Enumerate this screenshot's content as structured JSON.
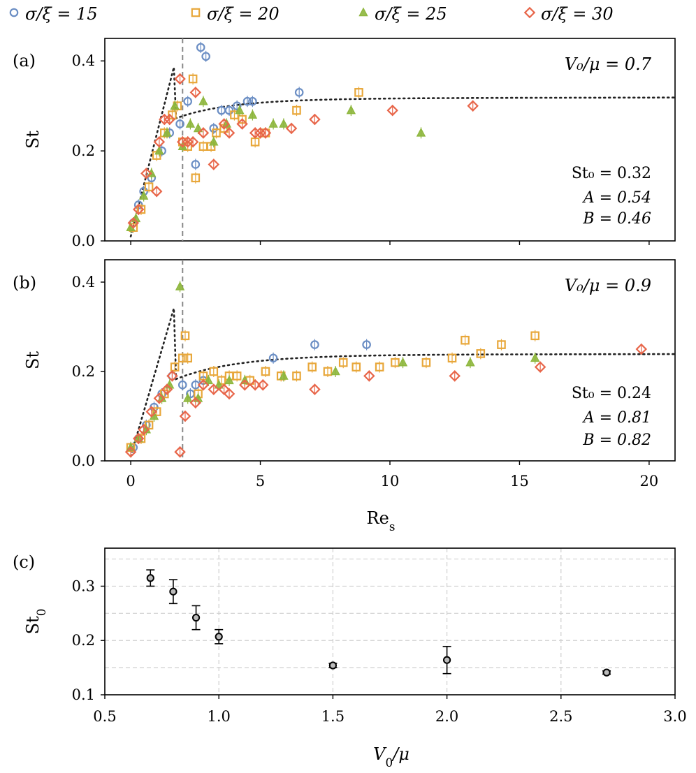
{
  "chart_data": {
    "type": "scatter",
    "legend": {
      "placement": "top",
      "entries": [
        {
          "key": "s15",
          "label": "σ/ξ = 15"
        },
        {
          "key": "s20",
          "label": "σ/ξ = 20"
        },
        {
          "key": "s25",
          "label": "σ/ξ = 25"
        },
        {
          "key": "s30",
          "label": "σ/ξ = 30"
        }
      ]
    },
    "series_styles": {
      "s15": {
        "color": "#6b8ec4",
        "marker": "circle"
      },
      "s20": {
        "color": "#e8a73a",
        "marker": "square"
      },
      "s25": {
        "color": "#8db63c",
        "marker": "triangle"
      },
      "s30": {
        "color": "#e8664a",
        "marker": "diamond"
      }
    },
    "panels": [
      {
        "label": "(a)",
        "title": "V₀/μ = 0.7",
        "ylabel": "St",
        "xlim": [
          -1,
          21
        ],
        "ylim": [
          0,
          0.45
        ],
        "yticks": [
          "0.0",
          "0.2",
          "0.4"
        ],
        "ytick_values": [
          0,
          0.2,
          0.4
        ],
        "vline_x": 2,
        "fit_label": "fit",
        "fit": {
          "St0": 0.32,
          "A": 0.54,
          "B": 0.46,
          "peak": 1.7,
          "decay": 2.1
        },
        "fit_text": [
          "St₀ = 0.32",
          "A = 0.54",
          "B = 0.46"
        ],
        "series": [
          {
            "key": "s15",
            "points": [
              [
                0.1,
                0.04
              ],
              [
                0.3,
                0.08
              ],
              [
                0.5,
                0.11
              ],
              [
                0.8,
                0.14
              ],
              [
                1.2,
                0.2
              ],
              [
                1.5,
                0.24
              ],
              [
                1.9,
                0.26
              ],
              [
                2.2,
                0.31
              ],
              [
                2.5,
                0.17
              ],
              [
                2.7,
                0.43
              ],
              [
                2.9,
                0.41
              ],
              [
                3.2,
                0.25
              ],
              [
                3.5,
                0.29
              ],
              [
                3.8,
                0.29
              ],
              [
                4.1,
                0.3
              ],
              [
                4.5,
                0.31
              ],
              [
                4.7,
                0.31
              ],
              [
                6.5,
                0.33
              ]
            ]
          },
          {
            "key": "s20",
            "points": [
              [
                0.1,
                0.03
              ],
              [
                0.4,
                0.07
              ],
              [
                0.7,
                0.12
              ],
              [
                1.0,
                0.19
              ],
              [
                1.3,
                0.24
              ],
              [
                1.6,
                0.28
              ],
              [
                1.8,
                0.3
              ],
              [
                2.0,
                0.22
              ],
              [
                2.2,
                0.21
              ],
              [
                2.4,
                0.36
              ],
              [
                2.5,
                0.14
              ],
              [
                2.8,
                0.21
              ],
              [
                3.1,
                0.21
              ],
              [
                3.3,
                0.24
              ],
              [
                3.6,
                0.25
              ],
              [
                4.0,
                0.28
              ],
              [
                4.3,
                0.27
              ],
              [
                4.8,
                0.22
              ],
              [
                5.2,
                0.24
              ],
              [
                6.4,
                0.29
              ],
              [
                8.8,
                0.33
              ]
            ]
          },
          {
            "key": "s25",
            "points": [
              [
                0.0,
                0.03
              ],
              [
                0.2,
                0.05
              ],
              [
                0.5,
                0.1
              ],
              [
                0.8,
                0.15
              ],
              [
                1.1,
                0.2
              ],
              [
                1.4,
                0.24
              ],
              [
                1.7,
                0.3
              ],
              [
                2.0,
                0.21
              ],
              [
                2.3,
                0.26
              ],
              [
                2.6,
                0.25
              ],
              [
                2.8,
                0.31
              ],
              [
                3.2,
                0.22
              ],
              [
                3.7,
                0.26
              ],
              [
                4.2,
                0.29
              ],
              [
                4.7,
                0.28
              ],
              [
                5.5,
                0.26
              ],
              [
                5.9,
                0.26
              ],
              [
                8.5,
                0.29
              ],
              [
                11.2,
                0.24
              ]
            ]
          },
          {
            "key": "s30",
            "points": [
              [
                0.1,
                0.04
              ],
              [
                0.3,
                0.07
              ],
              [
                0.6,
                0.15
              ],
              [
                1.0,
                0.11
              ],
              [
                1.1,
                0.22
              ],
              [
                1.3,
                0.27
              ],
              [
                1.5,
                0.27
              ],
              [
                1.9,
                0.36
              ],
              [
                2.0,
                0.22
              ],
              [
                2.2,
                0.22
              ],
              [
                2.4,
                0.22
              ],
              [
                2.5,
                0.33
              ],
              [
                2.8,
                0.24
              ],
              [
                3.2,
                0.17
              ],
              [
                3.6,
                0.26
              ],
              [
                3.8,
                0.24
              ],
              [
                4.3,
                0.26
              ],
              [
                4.8,
                0.24
              ],
              [
                5.0,
                0.24
              ],
              [
                5.2,
                0.24
              ],
              [
                6.2,
                0.25
              ],
              [
                7.1,
                0.27
              ],
              [
                10.1,
                0.29
              ],
              [
                13.2,
                0.3
              ]
            ]
          }
        ]
      },
      {
        "label": "(b)",
        "title": "V₀/μ = 0.9",
        "ylabel": "St",
        "xlim": [
          -1,
          21
        ],
        "ylim": [
          0,
          0.45
        ],
        "yticks": [
          "0.0",
          "0.2",
          "0.4"
        ],
        "ytick_values": [
          0,
          0.2,
          0.4
        ],
        "xticks": [
          "0",
          "5",
          "10",
          "15",
          "20"
        ],
        "xtick_values": [
          0,
          5,
          10,
          15,
          20
        ],
        "xlabel": "Re_s",
        "vline_x": 2,
        "fit_label": "fit",
        "fit": {
          "St0": 0.24,
          "A": 0.81,
          "B": 0.82,
          "peak": 1.7,
          "decay": 2.4
        },
        "fit_text": [
          "St₀ = 0.24",
          "A = 0.81",
          "B = 0.82"
        ],
        "series": [
          {
            "key": "s15",
            "points": [
              [
                0.1,
                0.03
              ],
              [
                0.3,
                0.05
              ],
              [
                0.6,
                0.08
              ],
              [
                0.9,
                0.12
              ],
              [
                1.2,
                0.15
              ],
              [
                1.6,
                0.19
              ],
              [
                2.0,
                0.17
              ],
              [
                2.3,
                0.15
              ],
              [
                2.5,
                0.17
              ],
              [
                2.8,
                0.18
              ],
              [
                5.5,
                0.23
              ],
              [
                7.1,
                0.26
              ],
              [
                9.1,
                0.26
              ]
            ]
          },
          {
            "key": "s20",
            "points": [
              [
                0.0,
                0.03
              ],
              [
                0.4,
                0.05
              ],
              [
                0.7,
                0.08
              ],
              [
                1.0,
                0.11
              ],
              [
                1.3,
                0.15
              ],
              [
                1.7,
                0.21
              ],
              [
                2.0,
                0.23
              ],
              [
                2.1,
                0.28
              ],
              [
                2.2,
                0.23
              ],
              [
                2.6,
                0.15
              ],
              [
                2.8,
                0.19
              ],
              [
                3.2,
                0.2
              ],
              [
                3.5,
                0.18
              ],
              [
                3.8,
                0.19
              ],
              [
                4.1,
                0.19
              ],
              [
                4.6,
                0.18
              ],
              [
                5.2,
                0.2
              ],
              [
                5.8,
                0.19
              ],
              [
                6.4,
                0.19
              ],
              [
                7.0,
                0.21
              ],
              [
                7.6,
                0.2
              ],
              [
                8.2,
                0.22
              ],
              [
                8.7,
                0.21
              ],
              [
                9.6,
                0.21
              ],
              [
                10.2,
                0.22
              ],
              [
                11.4,
                0.22
              ],
              [
                12.4,
                0.23
              ],
              [
                12.9,
                0.27
              ],
              [
                13.5,
                0.24
              ],
              [
                14.3,
                0.26
              ],
              [
                15.6,
                0.28
              ]
            ]
          },
          {
            "key": "s25",
            "points": [
              [
                0.0,
                0.03
              ],
              [
                0.3,
                0.05
              ],
              [
                0.6,
                0.07
              ],
              [
                0.9,
                0.1
              ],
              [
                1.2,
                0.14
              ],
              [
                1.5,
                0.17
              ],
              [
                1.9,
                0.39
              ],
              [
                2.2,
                0.14
              ],
              [
                2.6,
                0.14
              ],
              [
                3.0,
                0.18
              ],
              [
                3.4,
                0.17
              ],
              [
                3.8,
                0.18
              ],
              [
                4.4,
                0.18
              ],
              [
                5.9,
                0.19
              ],
              [
                7.9,
                0.2
              ],
              [
                10.5,
                0.22
              ],
              [
                13.1,
                0.22
              ],
              [
                15.6,
                0.23
              ]
            ]
          },
          {
            "key": "s30",
            "points": [
              [
                0.0,
                0.02
              ],
              [
                0.3,
                0.05
              ],
              [
                0.5,
                0.07
              ],
              [
                0.8,
                0.11
              ],
              [
                1.1,
                0.14
              ],
              [
                1.4,
                0.16
              ],
              [
                1.6,
                0.19
              ],
              [
                1.9,
                0.02
              ],
              [
                2.1,
                0.1
              ],
              [
                2.5,
                0.13
              ],
              [
                2.8,
                0.17
              ],
              [
                3.2,
                0.16
              ],
              [
                3.6,
                0.16
              ],
              [
                3.8,
                0.15
              ],
              [
                4.4,
                0.17
              ],
              [
                4.8,
                0.17
              ],
              [
                5.1,
                0.17
              ],
              [
                7.1,
                0.16
              ],
              [
                9.2,
                0.19
              ],
              [
                12.5,
                0.19
              ],
              [
                15.8,
                0.21
              ],
              [
                19.7,
                0.25
              ]
            ]
          }
        ]
      },
      {
        "label": "(c)",
        "ylabel": "St_0",
        "xlabel": "V_0/μ",
        "xlim": [
          0.5,
          3.0
        ],
        "ylim": [
          0.1,
          0.37
        ],
        "xticks": [
          "0.5",
          "1.0",
          "1.5",
          "2.0",
          "2.5",
          "3.0"
        ],
        "xtick_values": [
          0.5,
          1.0,
          1.5,
          2.0,
          2.5,
          3.0
        ],
        "yticks": [
          "0.1",
          "0.2",
          "0.3"
        ],
        "ytick_values": [
          0.1,
          0.2,
          0.3
        ],
        "grid": true,
        "points": [
          {
            "x": 0.7,
            "y": 0.315,
            "err": 0.015
          },
          {
            "x": 0.8,
            "y": 0.29,
            "err": 0.022
          },
          {
            "x": 0.9,
            "y": 0.242,
            "err": 0.022
          },
          {
            "x": 1.0,
            "y": 0.207,
            "err": 0.013
          },
          {
            "x": 1.5,
            "y": 0.154,
            "err": 0.004
          },
          {
            "x": 2.0,
            "y": 0.164,
            "err": 0.025
          },
          {
            "x": 2.7,
            "y": 0.141,
            "err": 0.003
          }
        ]
      }
    ]
  }
}
